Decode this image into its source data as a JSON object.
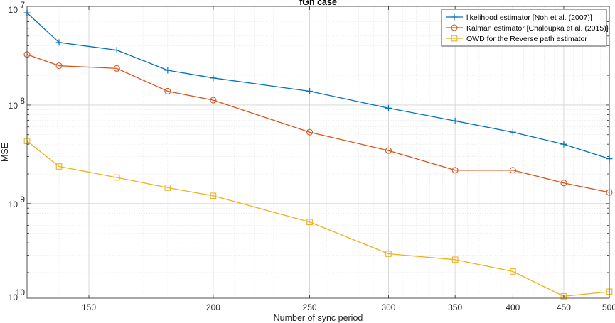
{
  "chart_data": {
    "type": "line",
    "title": "fGn case",
    "xlabel": "Number of sync period",
    "ylabel": "MSE",
    "x_scale": "log",
    "y_scale": "log",
    "xlim": [
      130,
      500
    ],
    "ylim": [
      1.1e-10,
      1e-07
    ],
    "grid": true,
    "legend_position": "top-right",
    "x_ticks": [
      150,
      200,
      250,
      300,
      350,
      400,
      450,
      500
    ],
    "x_tick_labels": [
      "150",
      "200",
      "250",
      "300",
      "350",
      "400",
      "450",
      "500"
    ],
    "y_ticks": [
      1e-10,
      1e-09,
      1e-08,
      1e-07
    ],
    "y_tick_labels": [
      {
        "base": "10",
        "exp": "10"
      },
      {
        "base": "10",
        "exp": "9"
      },
      {
        "base": "10",
        "exp": "8"
      },
      {
        "base": "10",
        "exp": "7"
      }
    ],
    "x": [
      130,
      140,
      160,
      180,
      200,
      250,
      300,
      350,
      400,
      450,
      500
    ],
    "series": [
      {
        "name": "likelihood estimator [Noh et al. (2007)]",
        "color": "#0072BD",
        "marker": "plus",
        "values": [
          8.6e-08,
          4.3e-08,
          3.6e-08,
          2.25e-08,
          1.88e-08,
          1.38e-08,
          9.3e-09,
          6.9e-09,
          5.3e-09,
          4e-09,
          2.85e-09
        ]
      },
      {
        "name": "Kalman estimator [Chaloupka et al. (2015)]",
        "color": "#D95319",
        "marker": "circle",
        "values": [
          3.25e-08,
          2.5e-08,
          2.35e-08,
          1.38e-08,
          1.12e-08,
          5.3e-09,
          3.45e-09,
          2.18e-09,
          2.18e-09,
          1.62e-09,
          1.3e-09
        ]
      },
      {
        "name": "OWD for the Reverse path estimator",
        "color": "#EDB120",
        "marker": "square",
        "values": [
          4.3e-09,
          2.38e-09,
          1.84e-09,
          1.45e-09,
          1.2e-09,
          6.5e-10,
          3.1e-10,
          2.7e-10,
          2.05e-10,
          1.15e-10,
          1.28e-10
        ]
      }
    ]
  }
}
